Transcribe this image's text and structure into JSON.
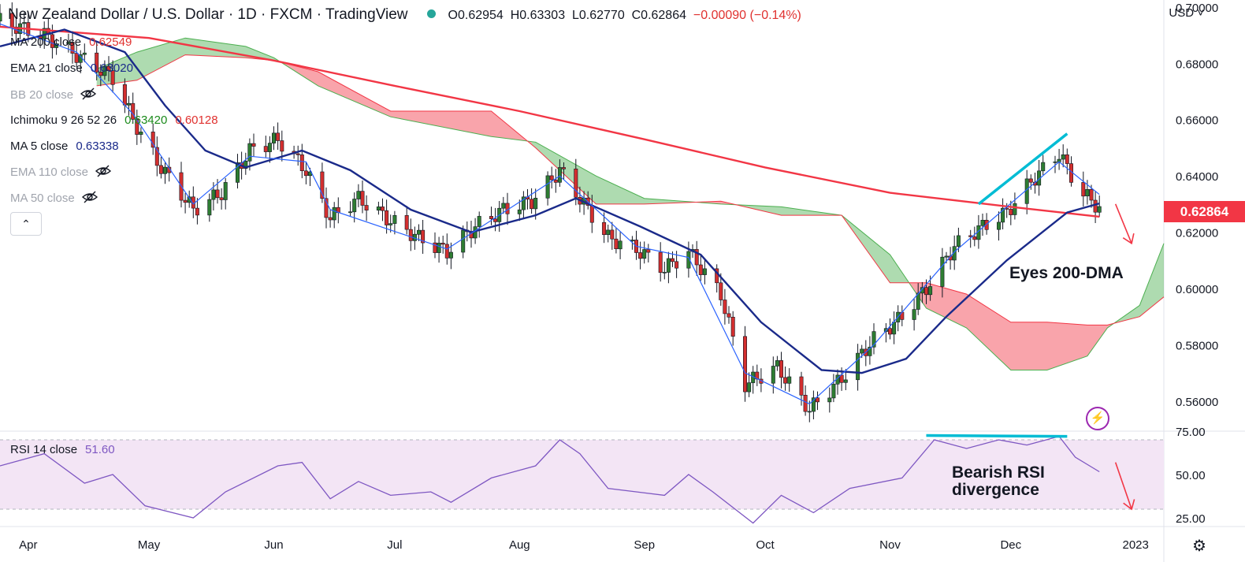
{
  "header": {
    "title": "New Zealand Dollar / U.S. Dollar · 1D · FXCM · TradingView",
    "open": "O0.62954",
    "high": "H0.63303",
    "low": "L0.62770",
    "close": "C0.62864",
    "change": "−0.00090 (−0.14%)"
  },
  "currency_label": "USD",
  "collapse_icon": "chevron-up-icon",
  "settings_icon": "gear-icon",
  "indicators": [
    {
      "name": "MA 200 close",
      "value": "0.62549",
      "color": "#f23645",
      "hidden": false
    },
    {
      "name": "EMA 21 close",
      "value": "0.63020",
      "color": "#1a2a8a",
      "hidden": false
    },
    {
      "name": "BB 20 close",
      "value": "",
      "color": "#a0a4ad",
      "hidden": true
    },
    {
      "name": "Ichimoku 9 26 52 26",
      "value": "0.63420",
      "value2": "0.60128",
      "color": "#1b8a1b",
      "color2": "#e0312f",
      "hidden": false
    },
    {
      "name": "MA 5 close",
      "value": "0.63338",
      "color": "#1a2a8a",
      "hidden": false
    },
    {
      "name": "EMA 110 close",
      "value": "",
      "color": "#a0a4ad",
      "hidden": true
    },
    {
      "name": "MA 50 close",
      "value": "",
      "color": "#a0a4ad",
      "hidden": true
    }
  ],
  "current_price": "0.62864",
  "annotations": {
    "dma": "Eyes 200-DMA",
    "rsi_line1": "Bearish RSI",
    "rsi_line2": "divergence"
  },
  "rsi_legend": {
    "name": "RSI 14 close",
    "value": "51.60"
  },
  "chart_data": {
    "type": "candlestick",
    "title": "New Zealand Dollar / U.S. Dollar · 1D · FXCM",
    "y_ticks": [
      "0.70000",
      "0.68000",
      "0.66000",
      "0.64000",
      "0.62000",
      "0.60000",
      "0.58000",
      "0.56000"
    ],
    "price_range": [
      0.5493,
      0.7025
    ],
    "rsi_ticks": [
      "75.00",
      "50.00",
      "25.00"
    ],
    "rsi_range": [
      20,
      75
    ],
    "x_ticks": [
      "Apr",
      "May",
      "Jun",
      "Jul",
      "Aug",
      "Sep",
      "Oct",
      "Nov",
      "Dec",
      "2023"
    ],
    "date_range": [
      "2022-03-25",
      "2023-01-08"
    ],
    "x_tick_dates": [
      "2022-04-01",
      "2022-05-01",
      "2022-06-01",
      "2022-07-01",
      "2022-08-01",
      "2022-09-01",
      "2022-10-01",
      "2022-11-01",
      "2022-12-01",
      "2023-01-01"
    ],
    "close_path": [
      [
        "2022-03-25",
        0.695
      ],
      [
        "2022-04-05",
        0.69
      ],
      [
        "2022-04-13",
        0.683
      ],
      [
        "2022-04-22",
        0.675
      ],
      [
        "2022-04-27",
        0.66
      ],
      [
        "2022-05-03",
        0.645
      ],
      [
        "2022-05-12",
        0.628
      ],
      [
        "2022-05-19",
        0.634
      ],
      [
        "2022-05-26",
        0.649
      ],
      [
        "2022-06-02",
        0.653
      ],
      [
        "2022-06-09",
        0.642
      ],
      [
        "2022-06-15",
        0.625
      ],
      [
        "2022-06-22",
        0.632
      ],
      [
        "2022-06-29",
        0.625
      ],
      [
        "2022-07-07",
        0.618
      ],
      [
        "2022-07-14",
        0.613
      ],
      [
        "2022-07-21",
        0.622
      ],
      [
        "2022-07-28",
        0.628
      ],
      [
        "2022-08-04",
        0.631
      ],
      [
        "2022-08-11",
        0.642
      ],
      [
        "2022-08-15",
        0.634
      ],
      [
        "2022-08-23",
        0.618
      ],
      [
        "2022-08-30",
        0.614
      ],
      [
        "2022-09-06",
        0.607
      ],
      [
        "2022-09-12",
        0.613
      ],
      [
        "2022-09-20",
        0.598
      ],
      [
        "2022-09-26",
        0.566
      ],
      [
        "2022-10-04",
        0.572
      ],
      [
        "2022-10-12",
        0.557
      ],
      [
        "2022-10-20",
        0.568
      ],
      [
        "2022-10-28",
        0.582
      ],
      [
        "2022-11-04",
        0.59
      ],
      [
        "2022-11-10",
        0.6
      ],
      [
        "2022-11-17",
        0.615
      ],
      [
        "2022-11-24",
        0.622
      ],
      [
        "2022-11-30",
        0.627
      ],
      [
        "2022-12-06",
        0.638
      ],
      [
        "2022-12-13",
        0.648
      ],
      [
        "2022-12-18",
        0.635
      ],
      [
        "2022-12-23",
        0.6286
      ]
    ],
    "series": [
      {
        "name": "MA 200 close",
        "color": "#f23645",
        "points": [
          [
            "2022-03-25",
            0.693
          ],
          [
            "2022-05-01",
            0.689
          ],
          [
            "2022-06-01",
            0.681
          ],
          [
            "2022-07-01",
            0.672
          ],
          [
            "2022-08-01",
            0.663
          ],
          [
            "2022-09-01",
            0.653
          ],
          [
            "2022-10-01",
            0.643
          ],
          [
            "2022-11-01",
            0.634
          ],
          [
            "2022-12-01",
            0.629
          ],
          [
            "2022-12-23",
            0.6255
          ]
        ]
      },
      {
        "name": "EMA 21 close",
        "color": "#1a2a8a",
        "points": [
          [
            "2022-03-25",
            0.686
          ],
          [
            "2022-04-10",
            0.692
          ],
          [
            "2022-04-25",
            0.684
          ],
          [
            "2022-05-05",
            0.665
          ],
          [
            "2022-05-15",
            0.649
          ],
          [
            "2022-05-25",
            0.643
          ],
          [
            "2022-06-08",
            0.649
          ],
          [
            "2022-06-20",
            0.642
          ],
          [
            "2022-07-05",
            0.628
          ],
          [
            "2022-07-20",
            0.62
          ],
          [
            "2022-08-05",
            0.626
          ],
          [
            "2022-08-15",
            0.632
          ],
          [
            "2022-08-31",
            0.622
          ],
          [
            "2022-09-15",
            0.612
          ],
          [
            "2022-09-30",
            0.588
          ],
          [
            "2022-10-15",
            0.571
          ],
          [
            "2022-10-25",
            0.57
          ],
          [
            "2022-11-05",
            0.575
          ],
          [
            "2022-11-15",
            0.59
          ],
          [
            "2022-11-30",
            0.61
          ],
          [
            "2022-12-15",
            0.627
          ],
          [
            "2022-12-23",
            0.6302
          ]
        ]
      },
      {
        "name": "MA 5 close",
        "color": "#2962ff",
        "points": [
          [
            "2022-03-25",
            0.694
          ],
          [
            "2022-04-13",
            0.684
          ],
          [
            "2022-04-27",
            0.662
          ],
          [
            "2022-05-12",
            0.63
          ],
          [
            "2022-05-26",
            0.647
          ],
          [
            "2022-06-09",
            0.645
          ],
          [
            "2022-06-15",
            0.628
          ],
          [
            "2022-07-14",
            0.614
          ],
          [
            "2022-08-11",
            0.64
          ],
          [
            "2022-08-30",
            0.615
          ],
          [
            "2022-09-12",
            0.611
          ],
          [
            "2022-09-26",
            0.57
          ],
          [
            "2022-10-12",
            0.559
          ],
          [
            "2022-10-28",
            0.58
          ],
          [
            "2022-11-17",
            0.613
          ],
          [
            "2022-12-13",
            0.645
          ],
          [
            "2022-12-23",
            0.6334
          ]
        ]
      }
    ],
    "ichimoku_cloud": {
      "span_a": [
        [
          "2022-04-18",
          0.678
        ],
        [
          "2022-04-28",
          0.684
        ],
        [
          "2022-05-10",
          0.689
        ],
        [
          "2022-05-25",
          0.686
        ],
        [
          "2022-06-01",
          0.682
        ],
        [
          "2022-06-12",
          0.672
        ],
        [
          "2022-06-30",
          0.661
        ],
        [
          "2022-07-25",
          0.654
        ],
        [
          "2022-08-05",
          0.652
        ],
        [
          "2022-08-20",
          0.64
        ],
        [
          "2022-09-01",
          0.632
        ],
        [
          "2022-09-20",
          0.63
        ],
        [
          "2022-10-05",
          0.629
        ],
        [
          "2022-10-20",
          0.626
        ],
        [
          "2022-11-01",
          0.612
        ],
        [
          "2022-11-10",
          0.593
        ],
        [
          "2022-11-20",
          0.586
        ],
        [
          "2022-12-01",
          0.571
        ],
        [
          "2022-12-10",
          0.571
        ],
        [
          "2022-12-20",
          0.576
        ],
        [
          "2022-12-25",
          0.586
        ],
        [
          "2023-01-02",
          0.594
        ],
        [
          "2023-01-08",
          0.616
        ]
      ],
      "span_b": [
        [
          "2022-04-18",
          0.672
        ],
        [
          "2022-04-28",
          0.674
        ],
        [
          "2022-05-10",
          0.683
        ],
        [
          "2022-05-25",
          0.682
        ],
        [
          "2022-06-01",
          0.681
        ],
        [
          "2022-06-12",
          0.677
        ],
        [
          "2022-06-30",
          0.663
        ],
        [
          "2022-07-25",
          0.663
        ],
        [
          "2022-08-05",
          0.65
        ],
        [
          "2022-08-20",
          0.63
        ],
        [
          "2022-09-01",
          0.63
        ],
        [
          "2022-09-20",
          0.631
        ],
        [
          "2022-10-05",
          0.626
        ],
        [
          "2022-10-20",
          0.626
        ],
        [
          "2022-11-01",
          0.602
        ],
        [
          "2022-11-10",
          0.602
        ],
        [
          "2022-11-20",
          0.598
        ],
        [
          "2022-12-01",
          0.588
        ],
        [
          "2022-12-10",
          0.588
        ],
        [
          "2022-12-20",
          0.587
        ],
        [
          "2022-12-25",
          0.587
        ],
        [
          "2023-01-02",
          0.59
        ],
        [
          "2023-01-08",
          0.597
        ]
      ]
    },
    "rsi": [
      [
        "2022-03-25",
        55
      ],
      [
        "2022-04-05",
        62
      ],
      [
        "2022-04-15",
        45
      ],
      [
        "2022-04-22",
        50
      ],
      [
        "2022-04-30",
        32
      ],
      [
        "2022-05-12",
        25
      ],
      [
        "2022-05-20",
        40
      ],
      [
        "2022-06-02",
        55
      ],
      [
        "2022-06-08",
        57
      ],
      [
        "2022-06-15",
        36
      ],
      [
        "2022-06-22",
        46
      ],
      [
        "2022-06-30",
        38
      ],
      [
        "2022-07-10",
        40
      ],
      [
        "2022-07-15",
        34
      ],
      [
        "2022-07-25",
        48
      ],
      [
        "2022-08-05",
        55
      ],
      [
        "2022-08-11",
        70
      ],
      [
        "2022-08-16",
        62
      ],
      [
        "2022-08-23",
        42
      ],
      [
        "2022-08-30",
        40
      ],
      [
        "2022-09-06",
        38
      ],
      [
        "2022-09-12",
        50
      ],
      [
        "2022-09-18",
        40
      ],
      [
        "2022-09-28",
        22
      ],
      [
        "2022-10-05",
        38
      ],
      [
        "2022-10-13",
        28
      ],
      [
        "2022-10-22",
        42
      ],
      [
        "2022-11-04",
        48
      ],
      [
        "2022-11-12",
        70
      ],
      [
        "2022-11-20",
        65
      ],
      [
        "2022-11-28",
        70
      ],
      [
        "2022-12-05",
        67
      ],
      [
        "2022-12-13",
        72
      ],
      [
        "2022-12-17",
        60
      ],
      [
        "2022-12-23",
        51.6
      ]
    ],
    "drawings": {
      "price_trendline": [
        [
          "2022-11-23",
          0.63
        ],
        [
          "2022-12-15",
          0.655
        ]
      ],
      "rsi_trendline": [
        [
          "2022-11-10",
          72.5
        ],
        [
          "2022-12-15",
          72
        ]
      ],
      "arrow_price": [
        [
          "2022-12-27",
          0.63
        ],
        [
          "2022-12-31",
          0.616
        ]
      ],
      "arrow_rsi": [
        [
          "2022-12-27",
          57
        ],
        [
          "2022-12-31",
          30
        ]
      ]
    }
  }
}
